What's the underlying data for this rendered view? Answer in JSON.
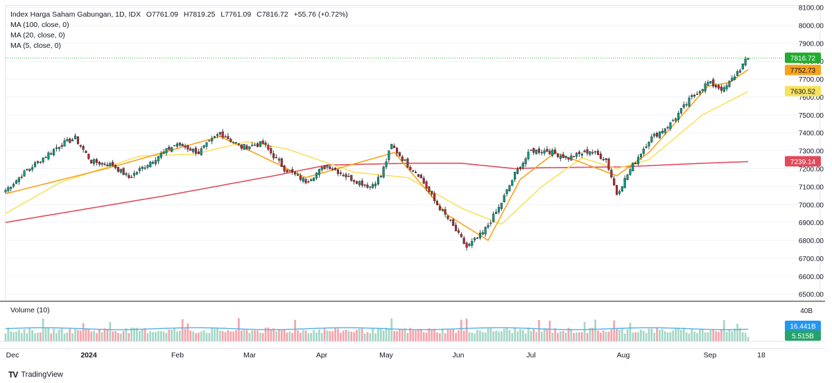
{
  "header": {
    "symbol": "Index Harga Saham Gabungan, 1D, IDX",
    "open": "O7761.09",
    "high": "H7819.25",
    "low": "L7761.09",
    "close": "C7816.72",
    "change": "+55.76 (+0.72%)",
    "ma100": "MA (100, close, 0)",
    "ma20": "MA (20, close, 0)",
    "ma5": "MA (5, close, 0)"
  },
  "volume_label": "Volume (10)",
  "branding": "TradingView",
  "colors": {
    "up": "#089981",
    "down": "#b22833",
    "up_vol": "#a5d6c6",
    "down_vol": "#f4a3ab",
    "ma100": "#e04b5b",
    "ma20": "#f7e25e",
    "ma5": "#f7a21b",
    "vol_ma": "#4fb0e6",
    "last_price": "#22ab2e"
  },
  "chart_data": {
    "type": "candlestick",
    "y_axis_ticks": [
      "8100.00",
      "8000.00",
      "7900.00",
      "7800.00",
      "7700.00",
      "7600.00",
      "7500.00",
      "7400.00",
      "7300.00",
      "7200.00",
      "7100.00",
      "7000.00",
      "6900.00",
      "6800.00",
      "6700.00",
      "6600.00",
      "6500.00"
    ],
    "ylim": [
      6460,
      8110
    ],
    "x_axis_labels": [
      "Dec",
      "2024",
      "Feb",
      "Mar",
      "Apr",
      "May",
      "Jun",
      "Jul",
      "Aug",
      "Sep",
      "18"
    ],
    "price_badges": {
      "close": "7816.72",
      "ma5": "7752.73",
      "ma20": "7630.52",
      "ma100": "7239.14"
    },
    "volume": {
      "axis_label": "40B",
      "ma_value": "16.441B",
      "last_value": "5.515B"
    },
    "price_anchors": [
      [
        0,
        7080
      ],
      [
        8,
        7190
      ],
      [
        20,
        7330
      ],
      [
        26,
        7370
      ],
      [
        32,
        7240
      ],
      [
        40,
        7220
      ],
      [
        46,
        7150
      ],
      [
        56,
        7260
      ],
      [
        64,
        7340
      ],
      [
        72,
        7290
      ],
      [
        80,
        7400
      ],
      [
        88,
        7320
      ],
      [
        96,
        7340
      ],
      [
        104,
        7200
      ],
      [
        112,
        7130
      ],
      [
        120,
        7220
      ],
      [
        128,
        7150
      ],
      [
        136,
        7100
      ],
      [
        140,
        7160
      ],
      [
        144,
        7330
      ],
      [
        150,
        7220
      ],
      [
        154,
        7170
      ],
      [
        160,
        7020
      ],
      [
        166,
        6900
      ],
      [
        172,
        6760
      ],
      [
        178,
        6840
      ],
      [
        184,
        6980
      ],
      [
        190,
        7170
      ],
      [
        196,
        7300
      ],
      [
        202,
        7300
      ],
      [
        210,
        7260
      ],
      [
        218,
        7300
      ],
      [
        224,
        7250
      ],
      [
        228,
        7060
      ],
      [
        234,
        7220
      ],
      [
        240,
        7360
      ],
      [
        248,
        7450
      ],
      [
        256,
        7600
      ],
      [
        262,
        7680
      ],
      [
        268,
        7640
      ],
      [
        272,
        7720
      ],
      [
        277,
        7816.72
      ]
    ],
    "ma100_anchors": [
      [
        0,
        6900
      ],
      [
        60,
        7050
      ],
      [
        100,
        7160
      ],
      [
        120,
        7220
      ],
      [
        150,
        7230
      ],
      [
        170,
        7230
      ],
      [
        190,
        7200
      ],
      [
        200,
        7205
      ],
      [
        230,
        7210
      ],
      [
        260,
        7230
      ],
      [
        277,
        7239.14
      ]
    ],
    "ma20_anchors": [
      [
        0,
        6950
      ],
      [
        20,
        7120
      ],
      [
        50,
        7270
      ],
      [
        70,
        7280
      ],
      [
        90,
        7350
      ],
      [
        105,
        7310
      ],
      [
        130,
        7180
      ],
      [
        150,
        7150
      ],
      [
        170,
        6980
      ],
      [
        185,
        6890
      ],
      [
        200,
        7100
      ],
      [
        215,
        7260
      ],
      [
        228,
        7200
      ],
      [
        240,
        7250
      ],
      [
        260,
        7500
      ],
      [
        277,
        7630.52
      ]
    ],
    "ma5_anchors": [
      [
        0,
        7060
      ],
      [
        40,
        7210
      ],
      [
        80,
        7380
      ],
      [
        112,
        7150
      ],
      [
        145,
        7290
      ],
      [
        165,
        6940
      ],
      [
        180,
        6800
      ],
      [
        192,
        7140
      ],
      [
        205,
        7290
      ],
      [
        228,
        7160
      ],
      [
        240,
        7290
      ],
      [
        262,
        7660
      ],
      [
        270,
        7680
      ],
      [
        277,
        7752.73
      ]
    ]
  }
}
